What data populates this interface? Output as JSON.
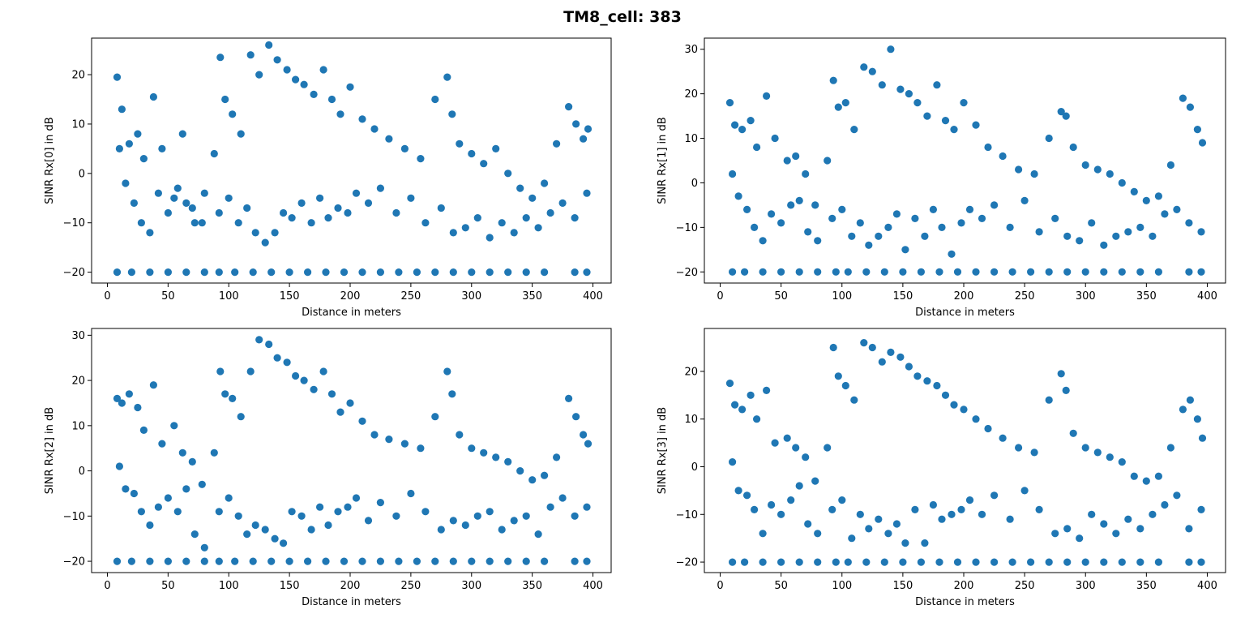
{
  "figure": {
    "title": "TM8_cell: 383",
    "marker_color": "#1f77b4"
  },
  "chart_data": [
    {
      "type": "scatter",
      "title": "",
      "xlabel": "Distance in meters",
      "ylabel": "SINR Rx[0] in dB",
      "xlim": [
        -13,
        415
      ],
      "ylim": [
        -22.2,
        27.4
      ],
      "xticks": [
        0,
        50,
        100,
        150,
        200,
        250,
        300,
        350,
        400
      ],
      "yticks": [
        -20,
        -10,
        0,
        10,
        20
      ],
      "grid": false,
      "series": [
        {
          "x": [
            8,
            12,
            18,
            25,
            30,
            38,
            45,
            55,
            62,
            70,
            78,
            88,
            93,
            97,
            103,
            110,
            118,
            125,
            133,
            140,
            148,
            155,
            162,
            170,
            178,
            185,
            192,
            200,
            210,
            220,
            232,
            245,
            258,
            270,
            280,
            284,
            290,
            300,
            310,
            320,
            330,
            340,
            350,
            360,
            370,
            380,
            386,
            392,
            396
          ],
          "y": [
            19.5,
            13,
            6,
            8,
            3,
            15.5,
            5,
            -5,
            8,
            -7,
            -10,
            4,
            23.5,
            15,
            12,
            8,
            24,
            20,
            26,
            23,
            21,
            19,
            18,
            16,
            21,
            15,
            12,
            17.5,
            11,
            9,
            7,
            5,
            3,
            15,
            19.5,
            12,
            6,
            4,
            2,
            5,
            0,
            -3,
            -5,
            -2,
            6,
            13.5,
            10,
            7,
            9
          ]
        },
        {
          "x": [
            10,
            15,
            22,
            28,
            35,
            42,
            50,
            58,
            65,
            72,
            80,
            92,
            100,
            108,
            115,
            122,
            130,
            138,
            145,
            152,
            160,
            168,
            175,
            182,
            190,
            198,
            205,
            215,
            225,
            238,
            250,
            262,
            275,
            285,
            295,
            305,
            315,
            325,
            335,
            345,
            355,
            365,
            375,
            385,
            395
          ],
          "y": [
            5,
            -2,
            -6,
            -10,
            -12,
            -4,
            -8,
            -3,
            -6,
            -10,
            -4,
            -8,
            -5,
            -10,
            -7,
            -12,
            -14,
            -12,
            -8,
            -9,
            -6,
            -10,
            -5,
            -9,
            -7,
            -8,
            -4,
            -6,
            -3,
            -8,
            -5,
            -10,
            -7,
            -12,
            -11,
            -9,
            -13,
            -10,
            -12,
            -9,
            -11,
            -8,
            -6,
            -9,
            -4
          ]
        },
        {
          "x": [
            8,
            20,
            35,
            50,
            65,
            80,
            92,
            105,
            120,
            135,
            150,
            165,
            180,
            195,
            210,
            225,
            240,
            255,
            270,
            285,
            300,
            315,
            330,
            345,
            360,
            385,
            395
          ],
          "y": [
            -20,
            -20,
            -20,
            -20,
            -20,
            -20,
            -20,
            -20,
            -20,
            -20,
            -20,
            -20,
            -20,
            -20,
            -20,
            -20,
            -20,
            -20,
            -20,
            -20,
            -20,
            -20,
            -20,
            -20,
            -20,
            -20,
            -20
          ]
        }
      ]
    },
    {
      "type": "scatter",
      "title": "",
      "xlabel": "Distance in meters",
      "ylabel": "SINR Rx[1] in dB",
      "xlim": [
        -13,
        415
      ],
      "ylim": [
        -22.5,
        32.5
      ],
      "xticks": [
        0,
        50,
        100,
        150,
        200,
        250,
        300,
        350,
        400
      ],
      "yticks": [
        -20,
        -10,
        0,
        10,
        20,
        30
      ],
      "grid": false,
      "series": [
        {
          "x": [
            8,
            12,
            18,
            25,
            30,
            38,
            45,
            55,
            62,
            70,
            78,
            88,
            93,
            97,
            103,
            110,
            118,
            125,
            133,
            140,
            148,
            155,
            162,
            170,
            178,
            185,
            192,
            200,
            210,
            220,
            232,
            245,
            258,
            270,
            280,
            284,
            290,
            300,
            310,
            320,
            330,
            340,
            350,
            360,
            370,
            380,
            386,
            392,
            396
          ],
          "y": [
            18,
            13,
            12,
            14,
            8,
            19.5,
            10,
            5,
            6,
            2,
            -5,
            5,
            23,
            17,
            18,
            12,
            26,
            25,
            22,
            30,
            21,
            20,
            18,
            15,
            22,
            14,
            12,
            18,
            13,
            8,
            6,
            3,
            2,
            10,
            16,
            15,
            8,
            4,
            3,
            2,
            0,
            -2,
            -4,
            -3,
            4,
            19,
            17,
            12,
            9
          ]
        },
        {
          "x": [
            10,
            15,
            22,
            28,
            35,
            42,
            50,
            58,
            65,
            72,
            80,
            92,
            100,
            108,
            115,
            122,
            130,
            138,
            145,
            152,
            160,
            168,
            175,
            182,
            190,
            198,
            205,
            215,
            225,
            238,
            250,
            262,
            275,
            285,
            295,
            305,
            315,
            325,
            335,
            345,
            355,
            365,
            375,
            385,
            395
          ],
          "y": [
            2,
            -3,
            -6,
            -10,
            -13,
            -7,
            -9,
            -5,
            -4,
            -11,
            -13,
            -8,
            -6,
            -12,
            -9,
            -14,
            -12,
            -10,
            -7,
            -15,
            -8,
            -12,
            -6,
            -10,
            -16,
            -9,
            -6,
            -8,
            -5,
            -10,
            -4,
            -11,
            -8,
            -12,
            -13,
            -9,
            -14,
            -12,
            -11,
            -10,
            -12,
            -7,
            -6,
            -9,
            -11
          ]
        },
        {
          "x": [
            10,
            20,
            35,
            50,
            65,
            80,
            95,
            105,
            120,
            135,
            150,
            165,
            180,
            195,
            210,
            225,
            240,
            255,
            270,
            285,
            300,
            315,
            330,
            345,
            360,
            385,
            395
          ],
          "y": [
            -20,
            -20,
            -20,
            -20,
            -20,
            -20,
            -20,
            -20,
            -20,
            -20,
            -20,
            -20,
            -20,
            -20,
            -20,
            -20,
            -20,
            -20,
            -20,
            -20,
            -20,
            -20,
            -20,
            -20,
            -20,
            -20,
            -20
          ]
        }
      ]
    },
    {
      "type": "scatter",
      "title": "",
      "xlabel": "Distance in meters",
      "ylabel": "SINR Rx[2] in dB",
      "xlim": [
        -13,
        415
      ],
      "ylim": [
        -22.5,
        31.5
      ],
      "xticks": [
        0,
        50,
        100,
        150,
        200,
        250,
        300,
        350,
        400
      ],
      "yticks": [
        -20,
        -10,
        0,
        10,
        20,
        30
      ],
      "grid": false,
      "series": [
        {
          "x": [
            8,
            12,
            18,
            25,
            30,
            38,
            45,
            55,
            62,
            70,
            78,
            88,
            93,
            97,
            103,
            110,
            118,
            125,
            133,
            140,
            148,
            155,
            162,
            170,
            178,
            185,
            192,
            200,
            210,
            220,
            232,
            245,
            258,
            270,
            280,
            284,
            290,
            300,
            310,
            320,
            330,
            340,
            350,
            360,
            370,
            380,
            386,
            392,
            396
          ],
          "y": [
            16,
            15,
            17,
            14,
            9,
            19,
            6,
            10,
            4,
            2,
            -3,
            4,
            22,
            17,
            16,
            12,
            22,
            29,
            28,
            25,
            24,
            21,
            20,
            18,
            22,
            17,
            13,
            15,
            11,
            8,
            7,
            6,
            5,
            12,
            22,
            17,
            8,
            5,
            4,
            3,
            2,
            0,
            -2,
            -1,
            3,
            16,
            12,
            8,
            6
          ]
        },
        {
          "x": [
            10,
            15,
            22,
            28,
            35,
            42,
            50,
            58,
            65,
            72,
            80,
            92,
            100,
            108,
            115,
            122,
            130,
            138,
            145,
            152,
            160,
            168,
            175,
            182,
            190,
            198,
            205,
            215,
            225,
            238,
            250,
            262,
            275,
            285,
            295,
            305,
            315,
            325,
            335,
            345,
            355,
            365,
            375,
            385,
            395
          ],
          "y": [
            1,
            -4,
            -5,
            -9,
            -12,
            -8,
            -6,
            -9,
            -4,
            -14,
            -17,
            -9,
            -6,
            -10,
            -14,
            -12,
            -13,
            -15,
            -16,
            -9,
            -10,
            -13,
            -8,
            -12,
            -9,
            -8,
            -6,
            -11,
            -7,
            -10,
            -5,
            -9,
            -13,
            -11,
            -12,
            -10,
            -9,
            -13,
            -11,
            -10,
            -14,
            -8,
            -6,
            -10,
            -8
          ]
        },
        {
          "x": [
            8,
            20,
            35,
            50,
            65,
            80,
            92,
            105,
            120,
            135,
            150,
            165,
            180,
            195,
            210,
            225,
            240,
            255,
            270,
            285,
            300,
            315,
            330,
            345,
            360,
            385,
            395
          ],
          "y": [
            -20,
            -20,
            -20,
            -20,
            -20,
            -20,
            -20,
            -20,
            -20,
            -20,
            -20,
            -20,
            -20,
            -20,
            -20,
            -20,
            -20,
            -20,
            -20,
            -20,
            -20,
            -20,
            -20,
            -20,
            -20,
            -20,
            -20
          ]
        }
      ]
    },
    {
      "type": "scatter",
      "title": "",
      "xlabel": "Distance in meters",
      "ylabel": "SINR Rx[3] in dB",
      "xlim": [
        -13,
        415
      ],
      "ylim": [
        -22.2,
        29.0
      ],
      "xticks": [
        0,
        50,
        100,
        150,
        200,
        250,
        300,
        350,
        400
      ],
      "yticks": [
        -20,
        -10,
        0,
        10,
        20
      ],
      "grid": false,
      "series": [
        {
          "x": [
            8,
            12,
            18,
            25,
            30,
            38,
            45,
            55,
            62,
            70,
            78,
            88,
            93,
            97,
            103,
            110,
            118,
            125,
            133,
            140,
            148,
            155,
            162,
            170,
            178,
            185,
            192,
            200,
            210,
            220,
            232,
            245,
            258,
            270,
            280,
            284,
            290,
            300,
            310,
            320,
            330,
            340,
            350,
            360,
            370,
            380,
            386,
            392,
            396
          ],
          "y": [
            17.5,
            13,
            12,
            15,
            10,
            16,
            5,
            6,
            4,
            2,
            -3,
            4,
            25,
            19,
            17,
            14,
            26,
            25,
            22,
            24,
            23,
            21,
            19,
            18,
            17,
            15,
            13,
            12,
            10,
            8,
            6,
            4,
            3,
            14,
            19.5,
            16,
            7,
            4,
            3,
            2,
            1,
            -2,
            -3,
            -2,
            4,
            12,
            14,
            10,
            6
          ]
        },
        {
          "x": [
            10,
            15,
            22,
            28,
            35,
            42,
            50,
            58,
            65,
            72,
            80,
            92,
            100,
            108,
            115,
            122,
            130,
            138,
            145,
            152,
            160,
            168,
            175,
            182,
            190,
            198,
            205,
            215,
            225,
            238,
            250,
            262,
            275,
            285,
            295,
            305,
            315,
            325,
            335,
            345,
            355,
            365,
            375,
            385,
            395
          ],
          "y": [
            1,
            -5,
            -6,
            -9,
            -14,
            -8,
            -10,
            -7,
            -4,
            -12,
            -14,
            -9,
            -7,
            -15,
            -10,
            -13,
            -11,
            -14,
            -12,
            -16,
            -9,
            -16,
            -8,
            -11,
            -10,
            -9,
            -7,
            -10,
            -6,
            -11,
            -5,
            -9,
            -14,
            -13,
            -15,
            -10,
            -12,
            -14,
            -11,
            -13,
            -10,
            -8,
            -6,
            -13,
            -9
          ]
        },
        {
          "x": [
            10,
            20,
            35,
            50,
            65,
            80,
            95,
            105,
            120,
            135,
            150,
            165,
            180,
            195,
            210,
            225,
            240,
            255,
            270,
            285,
            300,
            315,
            330,
            345,
            360,
            385,
            395
          ],
          "y": [
            -20,
            -20,
            -20,
            -20,
            -20,
            -20,
            -20,
            -20,
            -20,
            -20,
            -20,
            -20,
            -20,
            -20,
            -20,
            -20,
            -20,
            -20,
            -20,
            -20,
            -20,
            -20,
            -20,
            -20,
            -20,
            -20,
            -20
          ]
        }
      ]
    }
  ]
}
